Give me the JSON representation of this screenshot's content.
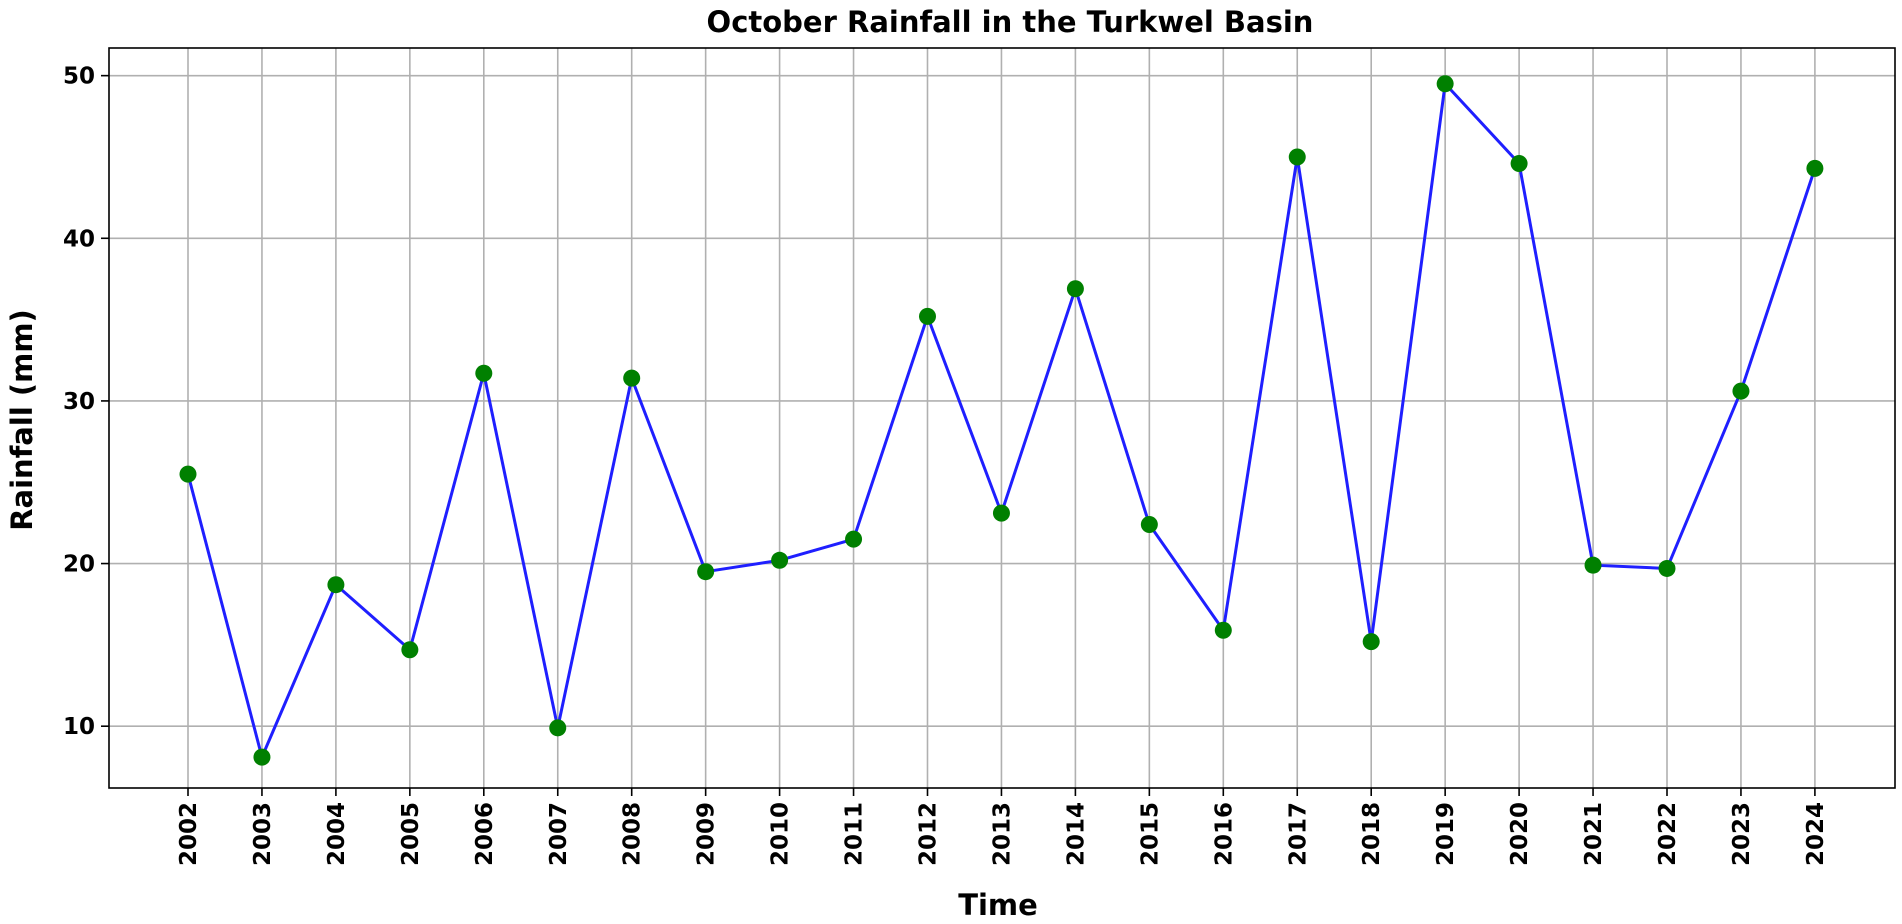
{
  "chart_data": {
    "type": "line",
    "title": "October Rainfall in the Turkwel Basin",
    "xlabel": "Time",
    "ylabel": "Rainfall (mm)",
    "x": [
      "2002",
      "2003",
      "2004",
      "2005",
      "2006",
      "2007",
      "2008",
      "2009",
      "2010",
      "2011",
      "2012",
      "2013",
      "2014",
      "2015",
      "2016",
      "2017",
      "2018",
      "2019",
      "2020",
      "2021",
      "2022",
      "2023",
      "2024"
    ],
    "values": [
      25.5,
      8.1,
      18.7,
      14.7,
      31.7,
      9.9,
      31.4,
      19.5,
      20.2,
      21.5,
      35.2,
      23.1,
      36.9,
      22.4,
      15.9,
      45.0,
      15.2,
      49.5,
      44.6,
      19.9,
      19.7,
      30.6,
      44.3
    ],
    "y_ticks": [
      "10",
      "20",
      "30",
      "40",
      "50"
    ],
    "ylim": [
      6.2,
      51.7
    ],
    "line_color": "#1f1fff",
    "marker_color": "#008000",
    "grid": true,
    "legend": false
  }
}
